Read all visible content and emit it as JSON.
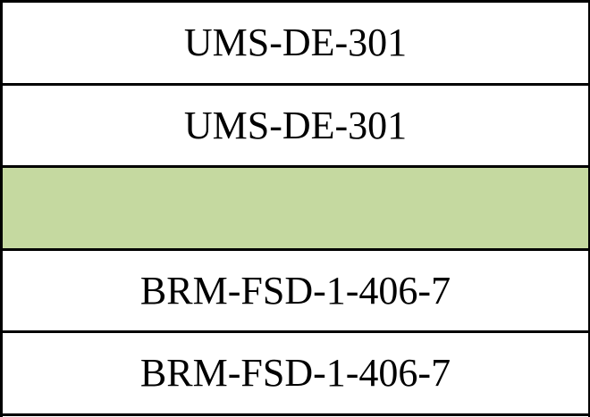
{
  "table": {
    "highlight_color": "#c5d9a0",
    "rows": [
      {
        "text": "UMS-DE-301",
        "highlighted": false
      },
      {
        "text": "UMS-DE-301",
        "highlighted": false
      },
      {
        "text": "",
        "highlighted": true
      },
      {
        "text": "BRM-FSD-1-406-7",
        "highlighted": false
      },
      {
        "text": "BRM-FSD-1-406-7",
        "highlighted": false
      }
    ]
  }
}
